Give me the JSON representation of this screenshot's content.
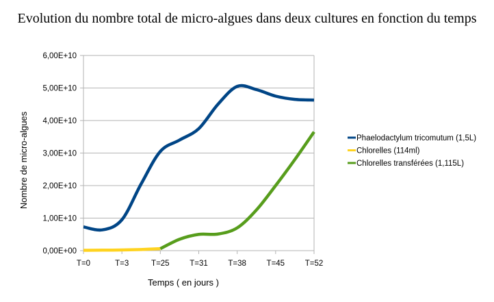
{
  "chart_data": {
    "type": "line",
    "title": "Evolution du nombre total de micro-algues dans deux cultures en fonction du temps",
    "xlabel": "Temps ( en jours )",
    "ylabel": "Nombre de micro-algues",
    "categories": [
      "T=0",
      "T=3",
      "T=25",
      "T=31",
      "T=38",
      "T=45",
      "T=52"
    ],
    "y_ticks": [
      "0,00E+00",
      "1,00E+10",
      "2,00E+10",
      "3,00E+10",
      "4,00E+10",
      "5,00E+10",
      "6,00E+10"
    ],
    "ylim": [
      0,
      60000000000
    ],
    "grid": true,
    "legend_position": "right",
    "series": [
      {
        "name": "Phaelodactylum tricomutum (1,5L)",
        "color": "#004586",
        "x": [
          0,
          0.5,
          1,
          1.5,
          2,
          2.5,
          3,
          3.5,
          4,
          4.5,
          5,
          5.5,
          6
        ],
        "values": [
          7300000000,
          6400000000,
          9500000000,
          20500000000,
          30500000000,
          34000000000,
          37500000000,
          45000000000,
          50500000000,
          49500000000,
          47500000000,
          46500000000,
          46300000000
        ]
      },
      {
        "name": "Chlorelles (114ml)",
        "color": "#ffd320",
        "x": [
          0,
          0.5,
          1,
          1.5,
          2
        ],
        "values": [
          100000000,
          150000000,
          200000000,
          350000000,
          600000000
        ]
      },
      {
        "name": "Chlorelles transférées (1,115L)",
        "color": "#579d1c",
        "x": [
          2,
          2.5,
          3,
          3.5,
          4,
          4.5,
          5,
          5.5,
          6
        ],
        "values": [
          600000000,
          3500000000,
          5000000000,
          5100000000,
          7000000000,
          12500000000,
          20000000000,
          28000000000,
          36500000000
        ]
      }
    ]
  }
}
